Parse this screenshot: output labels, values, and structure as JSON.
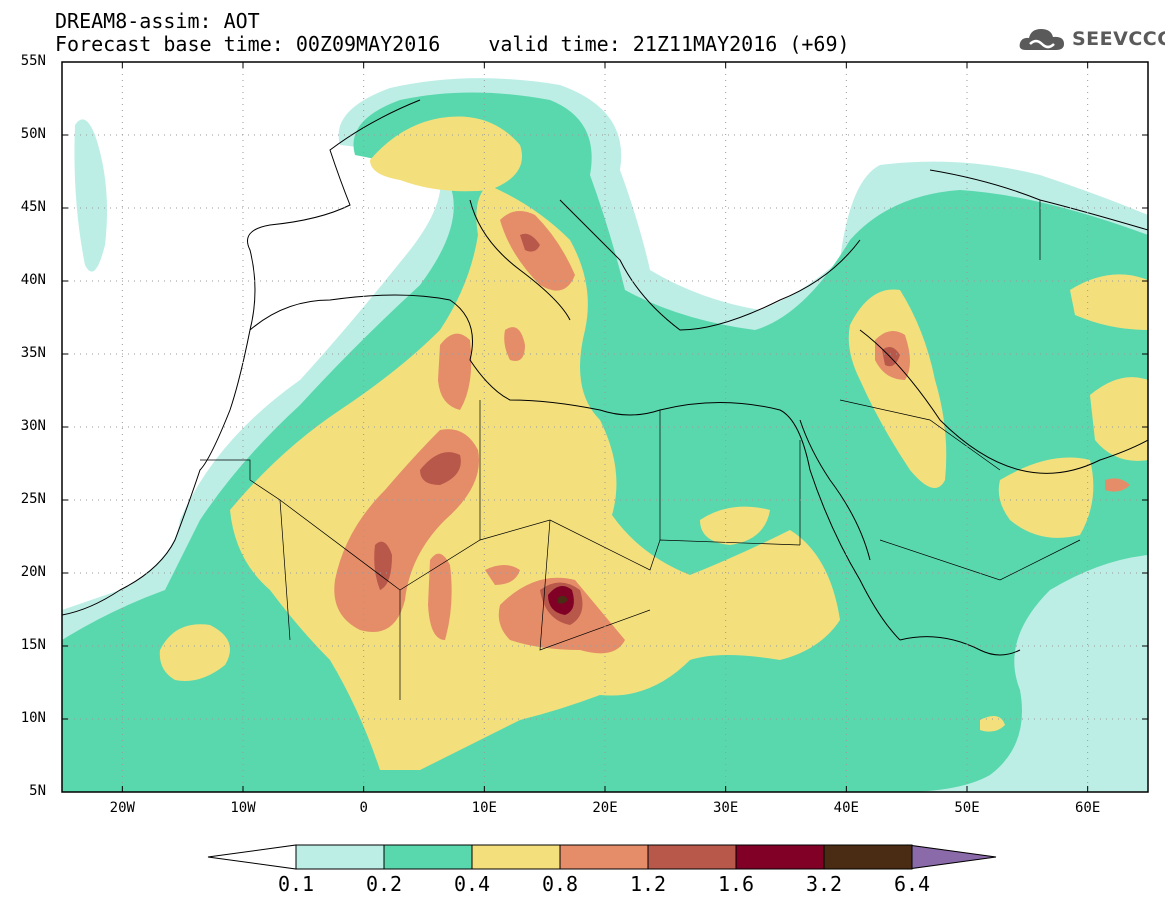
{
  "header": {
    "line1": "DREAM8-assim: AOT",
    "base_time": "Forecast base time: 00Z09MAY2016",
    "valid_time": "valid time: 21Z11MAY2016 (+69)",
    "logo_text": "SEEVCCC"
  },
  "map": {
    "variable": "AOT",
    "lon_range": [
      -25,
      65
    ],
    "lat_range": [
      5,
      55
    ],
    "lat_labels": [
      "55N",
      "50N",
      "45N",
      "40N",
      "35N",
      "30N",
      "25N",
      "20N",
      "15N",
      "10N",
      "5N"
    ],
    "lon_labels": [
      "20W",
      "10W",
      "0",
      "10E",
      "20E",
      "30E",
      "40E",
      "50E",
      "60E"
    ],
    "grid": true
  },
  "colorbar": {
    "levels": [
      "0.1",
      "0.2",
      "0.4",
      "0.8",
      "1.2",
      "1.6",
      "3.2",
      "6.4"
    ],
    "colors": [
      "#bdeee6",
      "#5ad8ad",
      "#f3e07d",
      "#e58d69",
      "#b8584a",
      "#800026",
      "#4a2c14"
    ],
    "under_color": "#ffffff",
    "over_color": "#8a6aa8"
  }
}
